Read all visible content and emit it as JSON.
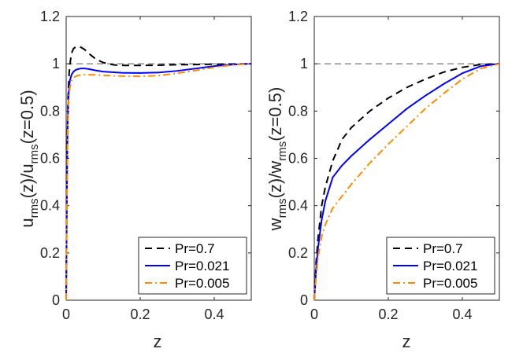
{
  "chart_data": [
    {
      "type": "line",
      "ylabel": {
        "main1": "u",
        "sub1": "rms",
        "main2": "(z)/u",
        "sub2": "rms",
        "main3": "(z=0.5)"
      },
      "xlabel": "z",
      "xlim": [
        0,
        0.5
      ],
      "ylim": [
        0,
        1.2
      ],
      "xticks": [
        0,
        0.2,
        0.4
      ],
      "xtick_labels": [
        "0",
        "0.2",
        "0.4"
      ],
      "yticks": [
        0,
        0.2,
        0.4,
        0.6,
        0.8,
        1,
        1.2
      ],
      "ytick_labels": [
        "0",
        "0.2",
        "0.4",
        "0.6",
        "0.8",
        "1",
        "1.2"
      ],
      "reference_line": 1,
      "legend_position": "bottom-right",
      "series": [
        {
          "name": "Pr=0.7",
          "color": "#000000",
          "dash": "dashed",
          "x": [
            0,
            0.002,
            0.005,
            0.008,
            0.012,
            0.016,
            0.02,
            0.025,
            0.03,
            0.035,
            0.04,
            0.05,
            0.06,
            0.08,
            0.1,
            0.13,
            0.16,
            0.2,
            0.25,
            0.3,
            0.35,
            0.4,
            0.45,
            0.5
          ],
          "y": [
            0,
            0.55,
            0.85,
            0.96,
            1.02,
            1.05,
            1.065,
            1.07,
            1.073,
            1.072,
            1.07,
            1.06,
            1.045,
            1.02,
            1.005,
            0.995,
            0.993,
            0.993,
            0.994,
            0.996,
            0.997,
            0.998,
            0.999,
            1.0
          ]
        },
        {
          "name": "Pr=0.021",
          "color": "#0000ff",
          "dash": "solid",
          "x": [
            0,
            0.002,
            0.004,
            0.007,
            0.01,
            0.015,
            0.02,
            0.025,
            0.03,
            0.04,
            0.05,
            0.06,
            0.08,
            0.1,
            0.15,
            0.2,
            0.25,
            0.3,
            0.35,
            0.4,
            0.45,
            0.5
          ],
          "y": [
            0,
            0.45,
            0.75,
            0.88,
            0.93,
            0.955,
            0.967,
            0.973,
            0.977,
            0.98,
            0.98,
            0.978,
            0.972,
            0.967,
            0.962,
            0.961,
            0.963,
            0.97,
            0.98,
            0.99,
            0.997,
            1.0
          ]
        },
        {
          "name": "Pr=0.005",
          "color": "#ff8c00",
          "dash": "dashdot",
          "x": [
            0,
            0.002,
            0.004,
            0.007,
            0.01,
            0.015,
            0.02,
            0.03,
            0.04,
            0.05,
            0.08,
            0.1,
            0.15,
            0.2,
            0.25,
            0.3,
            0.35,
            0.4,
            0.45,
            0.5
          ],
          "y": [
            0,
            0.4,
            0.72,
            0.85,
            0.9,
            0.93,
            0.942,
            0.95,
            0.953,
            0.954,
            0.953,
            0.951,
            0.948,
            0.947,
            0.95,
            0.96,
            0.972,
            0.985,
            0.995,
            1.0
          ]
        }
      ]
    },
    {
      "type": "line",
      "ylabel": {
        "main1": "w",
        "sub1": "rms",
        "main2": "(z)/w",
        "sub2": "rms",
        "main3": "(z=0.5)"
      },
      "xlabel": "z",
      "xlim": [
        0,
        0.5
      ],
      "ylim": [
        0,
        1.2
      ],
      "xticks": [
        0,
        0.2,
        0.4
      ],
      "xtick_labels": [
        "0",
        "0.2",
        "0.4"
      ],
      "yticks": [
        0,
        0.2,
        0.4,
        0.6,
        0.8,
        1,
        1.2
      ],
      "ytick_labels": [
        "0",
        "0.2",
        "0.4",
        "0.6",
        "0.8",
        "1",
        "1.2"
      ],
      "reference_line": 1,
      "legend_position": "bottom-right",
      "series": [
        {
          "name": "Pr=0.7",
          "color": "#000000",
          "dash": "dashed",
          "x": [
            0,
            0.005,
            0.01,
            0.02,
            0.03,
            0.05,
            0.075,
            0.1,
            0.15,
            0.2,
            0.25,
            0.3,
            0.35,
            0.4,
            0.45,
            0.5
          ],
          "y": [
            0,
            0.16,
            0.26,
            0.4,
            0.48,
            0.59,
            0.68,
            0.73,
            0.8,
            0.855,
            0.9,
            0.935,
            0.965,
            0.985,
            0.997,
            1.0
          ]
        },
        {
          "name": "Pr=0.021",
          "color": "#0000ff",
          "dash": "solid",
          "x": [
            0,
            0.005,
            0.01,
            0.02,
            0.03,
            0.05,
            0.075,
            0.1,
            0.15,
            0.2,
            0.25,
            0.3,
            0.35,
            0.4,
            0.45,
            0.5
          ],
          "y": [
            0,
            0.13,
            0.22,
            0.34,
            0.42,
            0.52,
            0.57,
            0.61,
            0.68,
            0.745,
            0.81,
            0.865,
            0.915,
            0.96,
            0.99,
            1.0
          ]
        },
        {
          "name": "Pr=0.005",
          "color": "#ff8c00",
          "dash": "dashdot",
          "x": [
            0,
            0.005,
            0.01,
            0.02,
            0.03,
            0.05,
            0.075,
            0.1,
            0.15,
            0.2,
            0.25,
            0.3,
            0.35,
            0.4,
            0.45,
            0.5
          ],
          "y": [
            0,
            0.1,
            0.18,
            0.27,
            0.32,
            0.39,
            0.44,
            0.49,
            0.58,
            0.66,
            0.735,
            0.81,
            0.875,
            0.935,
            0.98,
            1.0
          ]
        }
      ]
    }
  ]
}
